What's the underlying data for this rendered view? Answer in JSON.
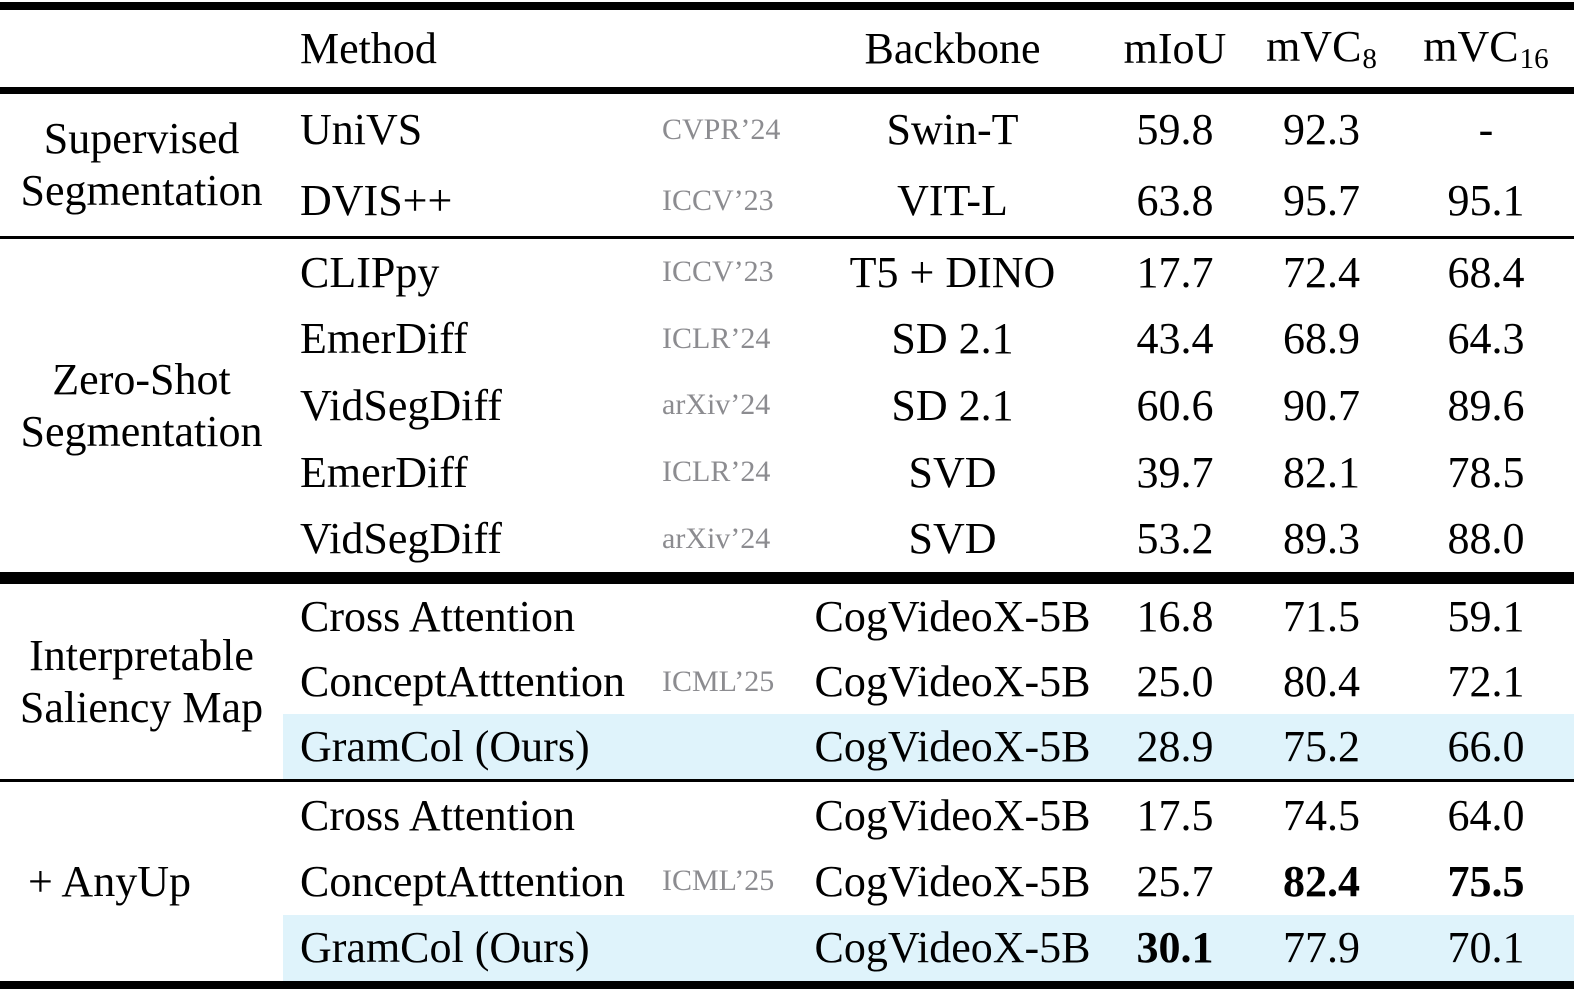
{
  "colors": {
    "highlight_row": "#dff3fb",
    "venue_text": "#8c8c90",
    "rule": "#000000",
    "text": "#000000"
  },
  "header": {
    "method": "Method",
    "backbone": "Backbone",
    "miou": "mIoU",
    "mvc8": {
      "base": "mVC",
      "sub": "8"
    },
    "mvc16": {
      "base": "mVC",
      "sub": "16"
    }
  },
  "sections": [
    {
      "label_lines": [
        "Supervised",
        "Segmentation"
      ],
      "rows": [
        {
          "method": "UniVS",
          "venue": "CVPR’24",
          "backbone": "Swin-T",
          "miou": "59.8",
          "mvc8": "92.3",
          "mvc16": "-"
        },
        {
          "method": "DVIS++",
          "venue": "ICCV’23",
          "backbone": "VIT-L",
          "miou": "63.8",
          "mvc8": "95.7",
          "mvc16": "95.1"
        }
      ]
    },
    {
      "label_lines": [
        "Zero-Shot",
        "Segmentation"
      ],
      "rows": [
        {
          "method": "CLIPpy",
          "venue": "ICCV’23",
          "backbone": "T5 + DINO",
          "miou": "17.7",
          "mvc8": "72.4",
          "mvc16": "68.4"
        },
        {
          "method": "EmerDiff",
          "venue": "ICLR’24",
          "backbone": "SD 2.1",
          "miou": "43.4",
          "mvc8": "68.9",
          "mvc16": "64.3"
        },
        {
          "method": "VidSegDiff",
          "venue": "arXiv’24",
          "backbone": "SD 2.1",
          "miou": "60.6",
          "mvc8": "90.7",
          "mvc16": "89.6"
        },
        {
          "method": "EmerDiff",
          "venue": "ICLR’24",
          "backbone": "SVD",
          "miou": "39.7",
          "mvc8": "82.1",
          "mvc16": "78.5"
        },
        {
          "method": "VidSegDiff",
          "venue": "arXiv’24",
          "backbone": "SVD",
          "miou": "53.2",
          "mvc8": "89.3",
          "mvc16": "88.0"
        }
      ]
    },
    {
      "label_lines": [
        "Interpretable",
        "Saliency Map"
      ],
      "rows": [
        {
          "method": "Cross Attention",
          "venue": "",
          "backbone": "CogVideoX-5B",
          "miou": "16.8",
          "mvc8": "71.5",
          "mvc16": "59.1"
        },
        {
          "method": "ConceptAtttention",
          "venue": "ICML’25",
          "backbone": "CogVideoX-5B",
          "miou": "25.0",
          "mvc8": "80.4",
          "mvc16": "72.1"
        },
        {
          "method": "GramCol (Ours)",
          "venue": "",
          "backbone": "CogVideoX-5B",
          "miou": "28.9",
          "mvc8": "75.2",
          "mvc16": "66.0",
          "highlight": true
        }
      ]
    },
    {
      "label_lines": [
        "+ AnyUp"
      ],
      "rows": [
        {
          "method": "Cross Attention",
          "venue": "",
          "backbone": "CogVideoX-5B",
          "miou": "17.5",
          "mvc8": "74.5",
          "mvc16": "64.0"
        },
        {
          "method": "ConceptAtttention",
          "venue": "ICML’25",
          "backbone": "CogVideoX-5B",
          "miou": "25.7",
          "mvc8": "82.4",
          "mvc16": "75.5",
          "bold": [
            "mvc8",
            "mvc16"
          ]
        },
        {
          "method": "GramCol (Ours)",
          "venue": "",
          "backbone": "CogVideoX-5B",
          "miou": "30.1",
          "mvc8": "77.9",
          "mvc16": "70.1",
          "highlight": true,
          "bold": [
            "miou"
          ]
        }
      ]
    }
  ]
}
